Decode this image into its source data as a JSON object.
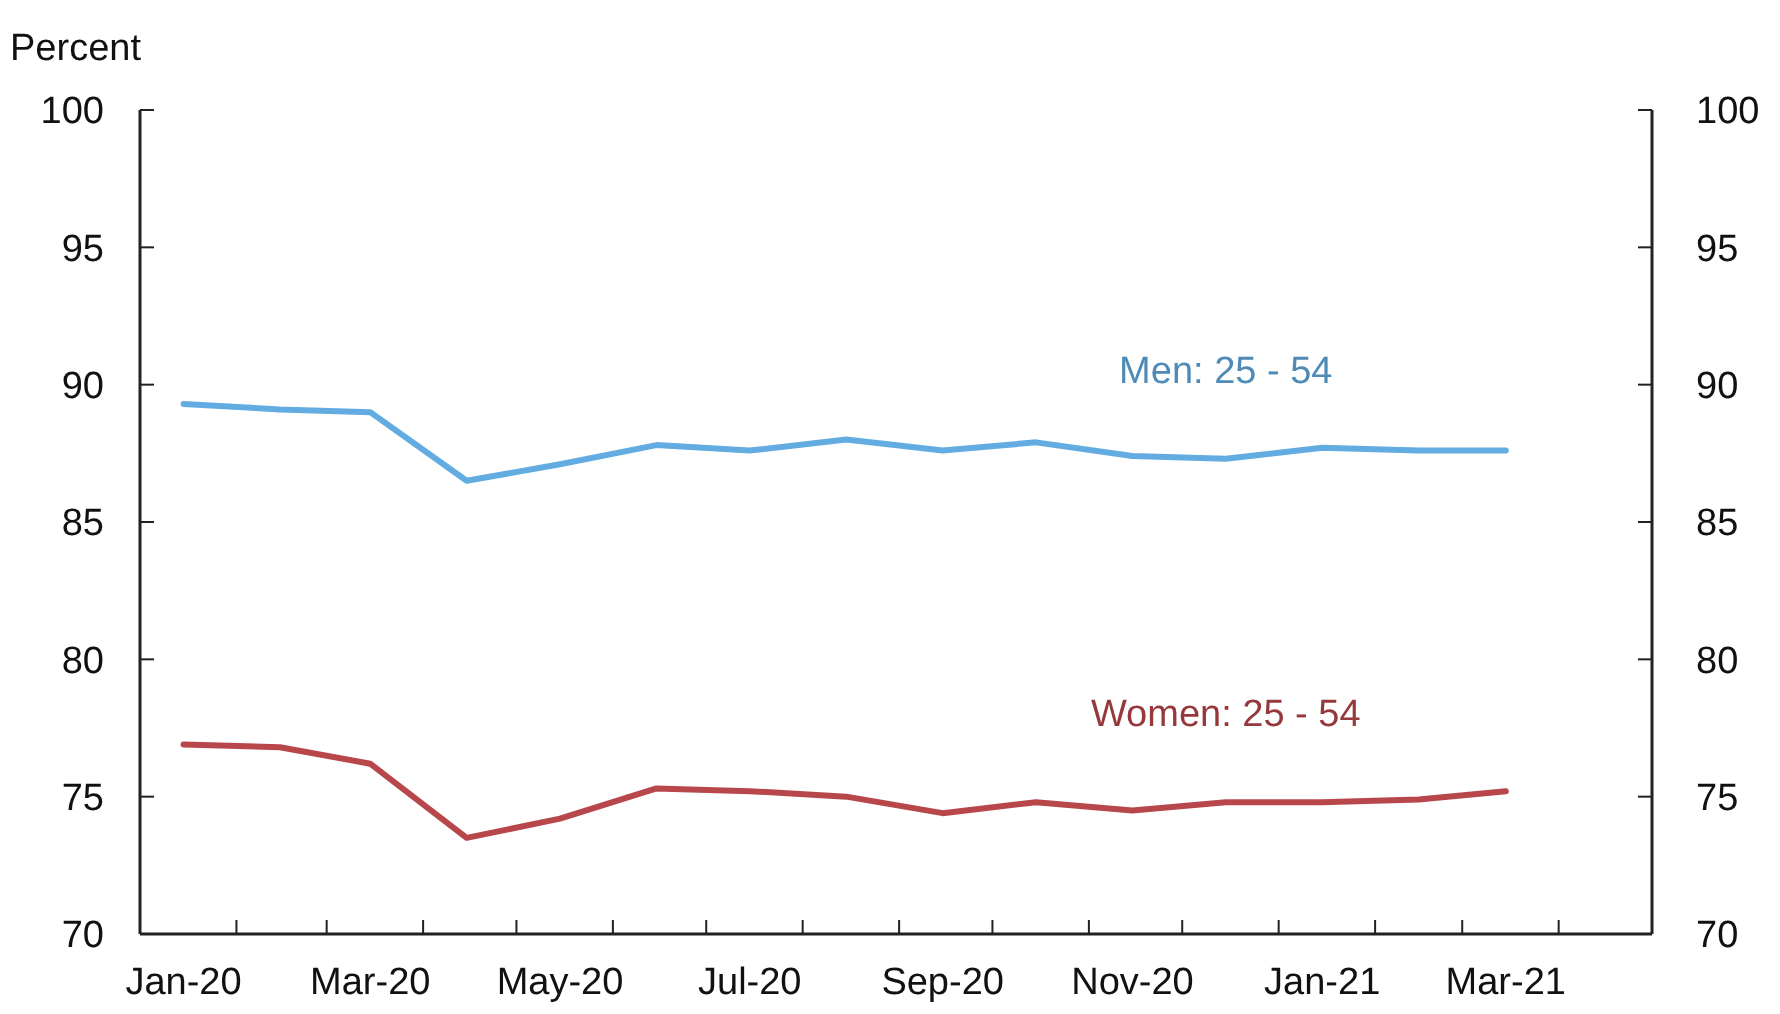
{
  "chart_data": {
    "type": "line",
    "ylabel": "Percent",
    "x": [
      "2020-01-15",
      "2020-02-15",
      "2020-03-15",
      "2020-04-15",
      "2020-05-15",
      "2020-06-15",
      "2020-07-15",
      "2020-08-15",
      "2020-09-15",
      "2020-10-15",
      "2020-11-15",
      "2020-12-15",
      "2021-01-15",
      "2021-02-15",
      "2021-03-15"
    ],
    "series": [
      {
        "name": "Men: 25 - 54",
        "color": "#62ace2",
        "values": [
          89.3,
          89.1,
          89.0,
          86.5,
          87.1,
          87.8,
          87.6,
          88.0,
          87.6,
          87.9,
          87.4,
          87.3,
          87.7,
          87.6,
          87.6
        ]
      },
      {
        "name": "Women: 25 - 54",
        "color": "#b8474c",
        "values": [
          76.9,
          76.8,
          76.2,
          73.5,
          74.2,
          75.3,
          75.2,
          75.0,
          74.4,
          74.8,
          74.5,
          74.8,
          74.8,
          74.9,
          75.2
        ]
      }
    ],
    "xlim": [
      "2020-01-01",
      "2021-05-01"
    ],
    "xticks": [
      {
        "value": "2020-01-15",
        "label": "Jan-20"
      },
      {
        "value": "2020-03-15",
        "label": "Mar-20"
      },
      {
        "value": "2020-05-15",
        "label": "May-20"
      },
      {
        "value": "2020-07-15",
        "label": "Jul-20"
      },
      {
        "value": "2020-09-15",
        "label": "Sep-20"
      },
      {
        "value": "2020-11-15",
        "label": "Nov-20"
      },
      {
        "value": "2021-01-15",
        "label": "Jan-21"
      },
      {
        "value": "2021-03-15",
        "label": "Mar-21"
      },
      {
        "value": "2020-02-01",
        "label": null
      },
      {
        "value": "2020-03-01",
        "label": null
      },
      {
        "value": "2020-04-01",
        "label": null
      },
      {
        "value": "2020-05-01",
        "label": null
      },
      {
        "value": "2020-06-01",
        "label": null
      },
      {
        "value": "2020-07-01",
        "label": null
      },
      {
        "value": "2020-08-01",
        "label": null
      },
      {
        "value": "2020-09-01",
        "label": null
      },
      {
        "value": "2020-10-01",
        "label": null
      },
      {
        "value": "2020-11-01",
        "label": null
      },
      {
        "value": "2020-12-01",
        "label": null
      },
      {
        "value": "2021-01-01",
        "label": null
      },
      {
        "value": "2021-02-01",
        "label": null
      },
      {
        "value": "2021-03-01",
        "label": null
      },
      {
        "value": "2021-04-01",
        "label": null
      }
    ],
    "ylim": [
      70,
      100
    ],
    "yticks": [
      70,
      75,
      80,
      85,
      90,
      95,
      100
    ],
    "y2lim": [
      70,
      100
    ],
    "y2ticks": [
      70,
      75,
      80,
      85,
      90,
      95,
      100
    ],
    "grid": false,
    "line_style": "solid",
    "marker": "none"
  }
}
